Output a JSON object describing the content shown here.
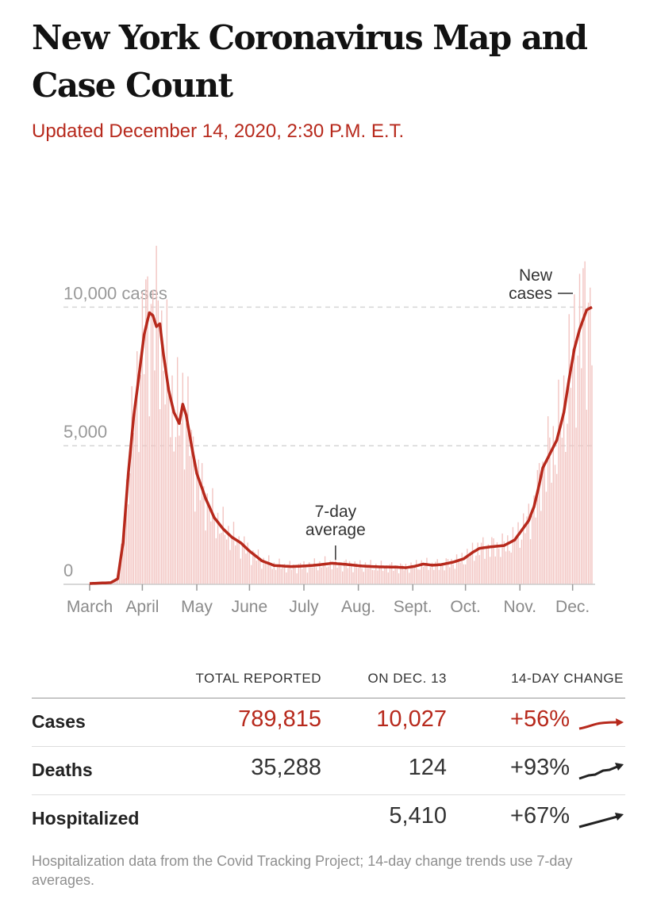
{
  "header": {
    "title": "New York Coronavirus Map and Case Count",
    "updated": "Updated December 14, 2020, 2:30 P.M. E.T."
  },
  "colors": {
    "accent": "#b7291c",
    "bar": "#f2c3c0",
    "text": "#121212",
    "muted": "#999999"
  },
  "chart_data": {
    "type": "bar",
    "title": "",
    "series": [
      {
        "name": "New cases",
        "kind": "bar"
      },
      {
        "name": "7-day average",
        "kind": "line"
      }
    ],
    "x_labels": [
      "March",
      "April",
      "May",
      "June",
      "July",
      "Aug.",
      "Sept.",
      "Oct.",
      "Nov.",
      "Dec."
    ],
    "x_label_index": [
      0,
      30,
      61,
      91,
      122,
      153,
      184,
      214,
      245,
      275
    ],
    "y_ticks": [
      {
        "value": 0,
        "label": "0"
      },
      {
        "value": 5000,
        "label": "5,000"
      },
      {
        "value": 10000,
        "label": "10,000 cases"
      }
    ],
    "ylim": [
      0,
      12500
    ],
    "annotations": {
      "new_cases": [
        "New",
        "cases"
      ],
      "average": [
        "7-day",
        "average"
      ]
    },
    "avg_knots": [
      [
        0,
        30
      ],
      [
        12,
        60
      ],
      [
        16,
        200
      ],
      [
        19,
        1500
      ],
      [
        22,
        4000
      ],
      [
        25,
        6000
      ],
      [
        28,
        7500
      ],
      [
        31,
        9000
      ],
      [
        34,
        9800
      ],
      [
        36,
        9700
      ],
      [
        38,
        9300
      ],
      [
        40,
        9400
      ],
      [
        42,
        8300
      ],
      [
        45,
        7000
      ],
      [
        48,
        6200
      ],
      [
        51,
        5800
      ],
      [
        53,
        6500
      ],
      [
        55,
        6100
      ],
      [
        58,
        5000
      ],
      [
        61,
        4000
      ],
      [
        66,
        3100
      ],
      [
        71,
        2400
      ],
      [
        76,
        2000
      ],
      [
        81,
        1700
      ],
      [
        86,
        1500
      ],
      [
        91,
        1200
      ],
      [
        98,
        850
      ],
      [
        105,
        680
      ],
      [
        115,
        640
      ],
      [
        122,
        660
      ],
      [
        130,
        700
      ],
      [
        138,
        760
      ],
      [
        146,
        720
      ],
      [
        155,
        660
      ],
      [
        165,
        630
      ],
      [
        175,
        620
      ],
      [
        180,
        600
      ],
      [
        185,
        650
      ],
      [
        190,
        730
      ],
      [
        195,
        690
      ],
      [
        200,
        710
      ],
      [
        207,
        800
      ],
      [
        213,
        920
      ],
      [
        218,
        1150
      ],
      [
        222,
        1300
      ],
      [
        228,
        1350
      ],
      [
        236,
        1400
      ],
      [
        242,
        1600
      ],
      [
        246,
        1950
      ],
      [
        250,
        2300
      ],
      [
        253,
        2800
      ],
      [
        256,
        3600
      ],
      [
        258,
        4200
      ],
      [
        262,
        4700
      ],
      [
        266,
        5200
      ],
      [
        270,
        6200
      ],
      [
        273,
        7400
      ],
      [
        276,
        8500
      ],
      [
        279,
        9200
      ],
      [
        283,
        9900
      ],
      [
        286,
        10000
      ]
    ]
  },
  "table": {
    "headers": {
      "total": "TOTAL REPORTED",
      "day": "ON DEC. 13",
      "change": "14-DAY CHANGE"
    },
    "rows": [
      {
        "label": "Cases",
        "total": "789,815",
        "day": "10,027",
        "change": "+56%"
      },
      {
        "label": "Deaths",
        "total": "35,288",
        "day": "124",
        "change": "+93%"
      },
      {
        "label": "Hospitalized",
        "total": "",
        "day": "5,410",
        "change": "+67%"
      }
    ]
  },
  "footnote": "Hospitalization data from the Covid Tracking Project; 14-day change trends use 7-day averages."
}
